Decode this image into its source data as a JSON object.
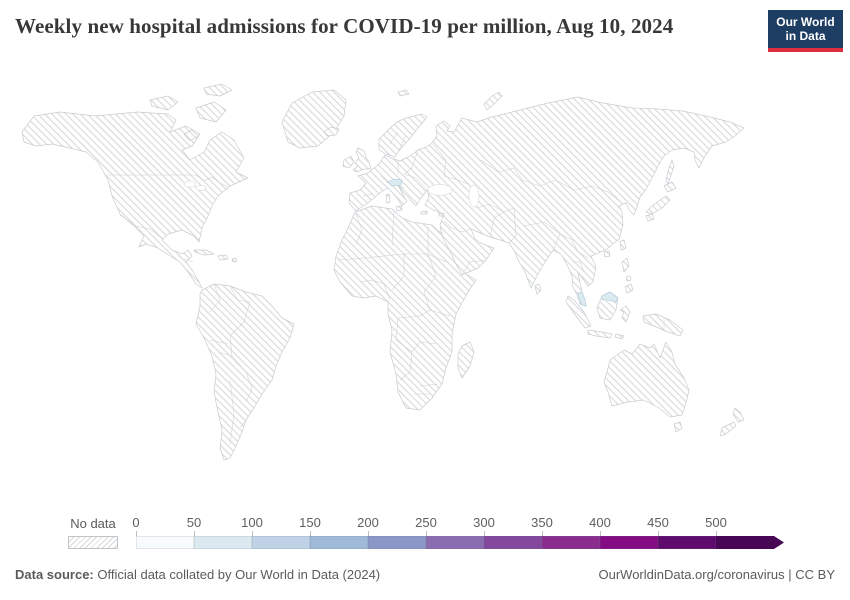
{
  "header": {
    "title": "Weekly new hospital admissions for COVID-19 per million, Aug 10, 2024",
    "logo": {
      "line1": "Our World",
      "line2": "in Data",
      "bg_color": "#1d3d63",
      "accent_color": "#dd2d41"
    }
  },
  "legend": {
    "no_data_label": "No data",
    "bins": [
      {
        "label": "0",
        "color": "#f7fbfc"
      },
      {
        "label": "50",
        "color": "#dbe9f1"
      },
      {
        "label": "100",
        "color": "#c0d3e6"
      },
      {
        "label": "150",
        "color": "#9fb9d8"
      },
      {
        "label": "200",
        "color": "#8b97c6"
      },
      {
        "label": "250",
        "color": "#8a6cb0"
      },
      {
        "label": "300",
        "color": "#83489e"
      },
      {
        "label": "350",
        "color": "#8a2d8f"
      },
      {
        "label": "400",
        "color": "#830c84"
      },
      {
        "label": "450",
        "color": "#5f0b6d"
      },
      {
        "label": "500",
        "color": "#470754"
      }
    ]
  },
  "map": {
    "hatch_color": "#d8d8d8",
    "border_color": "#c9ced3",
    "highlight_fill": "#dcebf2"
  },
  "footer": {
    "source_label": "Data source:",
    "source_text": " Official data collated by Our World in Data (2024)",
    "credit": "OurWorldinData.org/coronavirus | CC BY"
  },
  "chart_data": {
    "type": "choropleth_map",
    "title": "Weekly new hospital admissions for COVID-19 per million",
    "date": "Aug 10, 2024",
    "unit": "weekly new hospital admissions per million people",
    "legend_thresholds": [
      0,
      50,
      100,
      150,
      200,
      250,
      300,
      350,
      400,
      450,
      500
    ],
    "legend_open_ended_max": "500+",
    "legend_colors": [
      "#f7fbfc",
      "#dbe9f1",
      "#c0d3e6",
      "#9fb9d8",
      "#8b97c6",
      "#8a6cb0",
      "#83489e",
      "#8a2d8f",
      "#830c84",
      "#5f0b6d",
      "#470754"
    ],
    "no_data_style": "white with light gray diagonal hatching",
    "regions_with_data": [
      {
        "name": "Austria",
        "bin": "50-100",
        "fill": "#dcebf2"
      },
      {
        "name": "Malaysia",
        "bin": "50-100",
        "fill": "#dcebf2"
      }
    ],
    "all_other_regions": "No data"
  }
}
